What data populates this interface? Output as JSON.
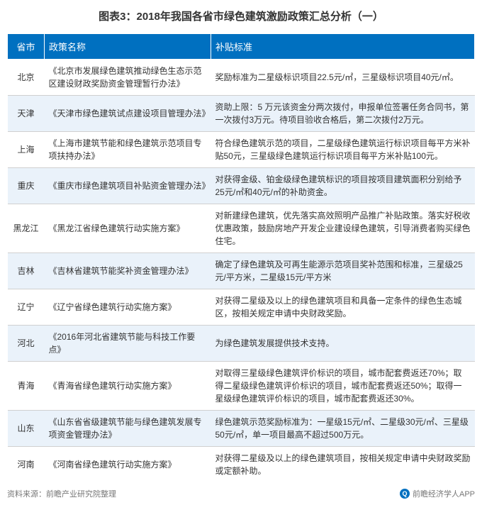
{
  "title": "图表3：2018年我国各省市绿色建筑激励政策汇总分析（一）",
  "columns": [
    "省市",
    "政策名称",
    "补贴标准"
  ],
  "rows": [
    {
      "province": "北京",
      "policy": "《北京市发展绿色建筑推动绿色生态示范区建设财政奖励资金管理暂行办法》",
      "standard": "奖励标准为二星级标识项目22.5元/㎡，三星级标识项目40元/㎡。"
    },
    {
      "province": "天津",
      "policy": "《天津市绿色建筑试点建设项目管理办法》",
      "standard": "资助上限：5 万元该资金分两次拨付，申报单位签署任务合同书，第一次拨付3万元。待项目验收合格后，第二次拨付2万元。"
    },
    {
      "province": "上海",
      "policy": "《上海市建筑节能和绿色建筑示范项目专项扶持办法》",
      "standard": "符合绿色建筑示范的项目，二星级绿色建筑运行标识项目每平方米补贴50元，三星级绿色建筑运行标识项目每平方米补贴100元。"
    },
    {
      "province": "重庆",
      "policy": "《重庆市绿色建筑项目补贴资金管理办法》",
      "standard": "对获得金级、铂金级绿色建筑标识的项目按项目建筑面积分别给予25元/㎡和40元/㎡的补助资金。"
    },
    {
      "province": "黑龙江",
      "policy": "《黑龙江省绿色建筑行动实施方案》",
      "standard": "对新建绿色建筑，优先落实高效照明产品推广补贴政策。落实好税收优惠政策，鼓励房地产开发企业建设绿色建筑，引导消费者购买绿色住宅。"
    },
    {
      "province": "吉林",
      "policy": "《吉林省建筑节能奖补资金管理办法》",
      "standard": "确定了绿色建筑及可再生能源示范项目奖补范围和标准，三星级25元/平方米，二星级15元/平方米"
    },
    {
      "province": "辽宁",
      "policy": "《辽宁省绿色建筑行动实施方案》",
      "standard": "对获得二星级及以上的绿色建筑项目和具备一定条件的绿色生态城区，按相关规定申请中央财政奖励。"
    },
    {
      "province": "河北",
      "policy": "《2016年河北省建筑节能与科技工作要点》",
      "standard": "为绿色建筑发展提供技术支持。"
    },
    {
      "province": "青海",
      "policy": "《青海省绿色建筑行动实施方案》",
      "standard": "对取得三星级绿色建筑评价标识的项目，城市配套费返还70%；取得二星级绿色建筑评价标识的项目，城市配套费返还50%；取得一星级绿色建筑评价标识的项目，城市配套费返还30%。"
    },
    {
      "province": "山东",
      "policy": "《山东省省级建筑节能与绿色建筑发展专项资金管理办法》",
      "standard": "绿色建筑示范奖励标准为：一星级15元/㎡、二星级30元/㎡、三星级50元/㎡，单一项目最高不超过500万元。"
    },
    {
      "province": "河南",
      "policy": "《河南省绿色建筑行动实施方案》",
      "standard": "对获得二星级及以上的绿色建筑项目，按相关规定申请中央财政奖励或定额补助。"
    }
  ],
  "footer_left": "资料来源：前瞻产业研究院整理",
  "footer_right": "前瞻经济学人APP",
  "colors": {
    "header_bg": "#0070c0",
    "header_text": "#ffffff",
    "row_even_bg": "#eaf2fa",
    "row_odd_bg": "#ffffff",
    "border": "#d0d0d0",
    "text": "#333333",
    "footer_text": "#777777"
  }
}
